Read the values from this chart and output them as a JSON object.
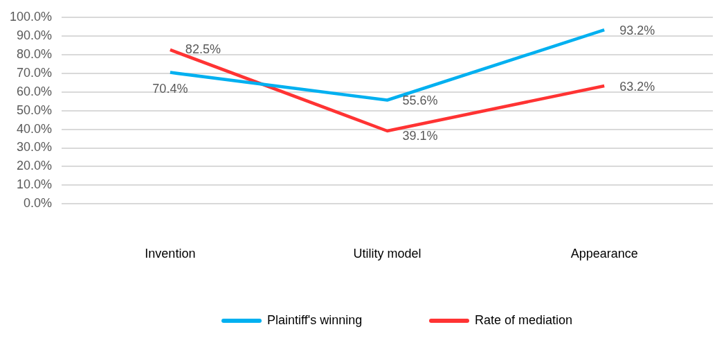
{
  "chart_data": {
    "type": "line",
    "categories": [
      "Invention",
      "Utility model",
      "Appearance"
    ],
    "series": [
      {
        "name": "Plaintiff's winning",
        "color": "#00b0f0",
        "values": [
          70.4,
          55.6,
          93.2
        ],
        "value_labels": [
          "70.4%",
          "55.6%",
          "93.2%"
        ]
      },
      {
        "name": "Rate of mediation",
        "color": "#ff3333",
        "values": [
          82.5,
          39.1,
          63.2
        ],
        "value_labels": [
          "82.5%",
          "39.1%",
          "63.2%"
        ]
      }
    ],
    "ylim": [
      0,
      100
    ],
    "yticks": [
      {
        "value": 0,
        "label": "0.0%"
      },
      {
        "value": 10,
        "label": "10.0%"
      },
      {
        "value": 20,
        "label": "20.0%"
      },
      {
        "value": 30,
        "label": "30.0%"
      },
      {
        "value": 40,
        "label": "40.0%"
      },
      {
        "value": 50,
        "label": "50.0%"
      },
      {
        "value": 60,
        "label": "60.0%"
      },
      {
        "value": 70,
        "label": "70.0%"
      },
      {
        "value": 80,
        "label": "80.0%"
      },
      {
        "value": 90,
        "label": "90.0%"
      },
      {
        "value": 100,
        "label": "100.0%"
      }
    ],
    "grid": "y",
    "legend": "bottom",
    "marker": "none",
    "line_style": "solid"
  }
}
